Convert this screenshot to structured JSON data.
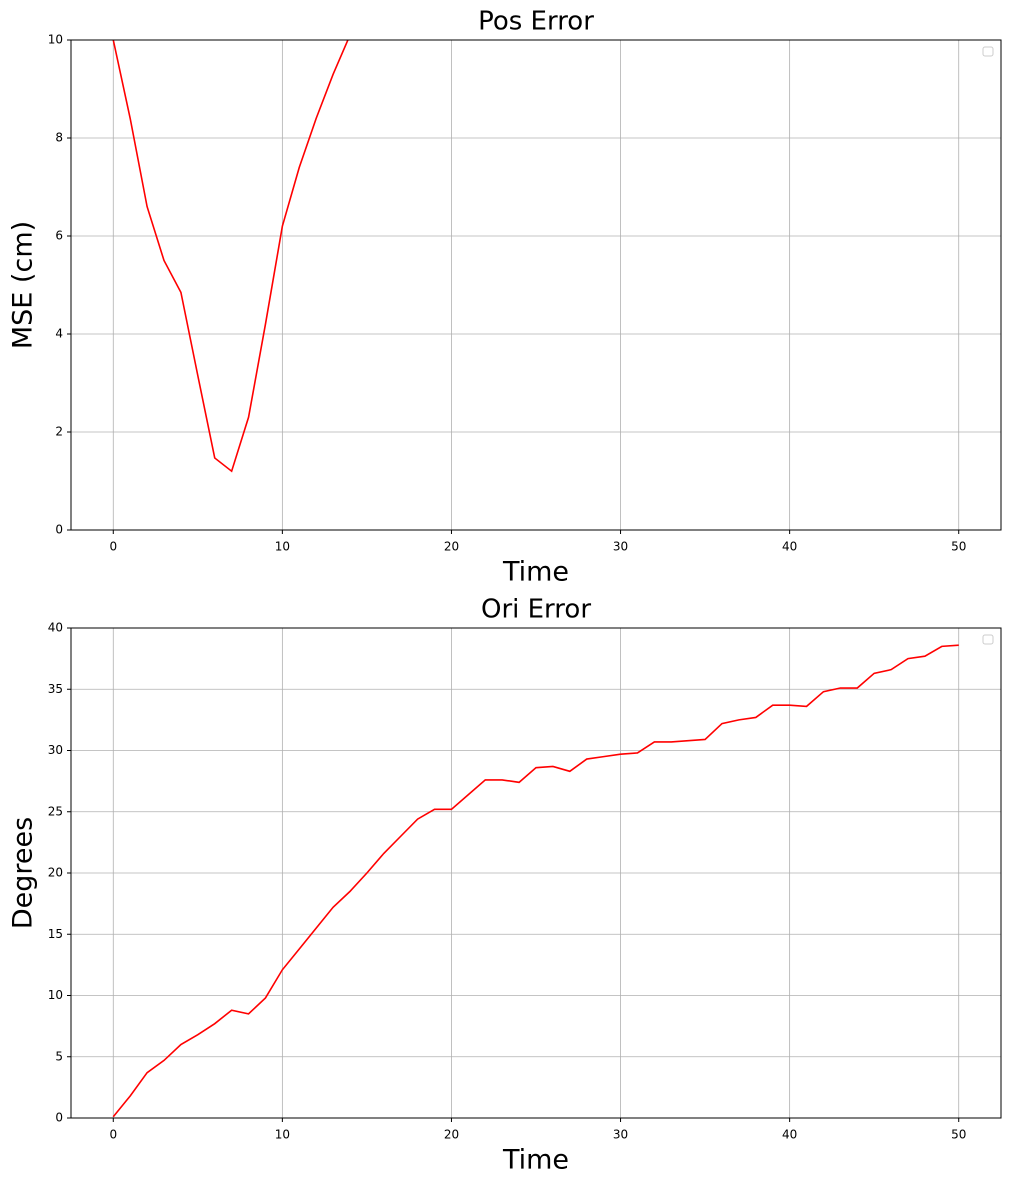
{
  "chart_data": [
    {
      "type": "line",
      "title": "Pos Error",
      "xlabel": "Time",
      "ylabel": "MSE (cm)",
      "x": [
        0,
        1,
        2,
        3,
        4,
        5,
        6,
        7,
        8,
        9,
        10,
        11,
        12,
        13,
        14
      ],
      "series": [
        {
          "color": "#ff0000",
          "values": [
            10,
            8.4,
            6.6,
            5.5,
            4.85,
            3.15,
            1.47,
            1.2,
            2.3,
            4.2,
            6.2,
            7.4,
            8.4,
            9.3,
            10.1
          ]
        }
      ],
      "xlim": [
        -2.5,
        52.5
      ],
      "xticks": [
        0,
        10,
        20,
        30,
        40,
        50
      ],
      "ylim": [
        0,
        10
      ],
      "yticks": [
        0,
        2,
        4,
        6,
        8,
        10
      ],
      "grid": true,
      "legend": "upper right"
    },
    {
      "type": "line",
      "title": "Ori Error",
      "xlabel": "Time",
      "ylabel": "Degrees",
      "x": [
        0,
        1,
        2,
        3,
        4,
        5,
        6,
        7,
        8,
        9,
        10,
        11,
        12,
        13,
        14,
        15,
        16,
        17,
        18,
        19,
        20,
        21,
        22,
        23,
        24,
        25,
        26,
        27,
        28,
        29,
        30,
        31,
        32,
        33,
        34,
        35,
        36,
        37,
        38,
        39,
        40,
        41,
        42,
        43,
        44,
        45,
        46,
        47,
        48,
        49,
        50
      ],
      "series": [
        {
          "color": "#ff0000",
          "values": [
            0.1,
            1.8,
            3.7,
            4.7,
            6.0,
            6.8,
            7.7,
            8.8,
            8.5,
            9.8,
            12.1,
            13.8,
            15.5,
            17.2,
            18.5,
            20.0,
            21.6,
            23.0,
            24.4,
            25.2,
            25.2,
            26.4,
            27.6,
            27.6,
            27.4,
            28.6,
            28.7,
            28.3,
            29.3,
            29.5,
            29.7,
            29.8,
            30.7,
            30.7,
            30.8,
            30.9,
            32.2,
            32.5,
            32.7,
            33.7,
            33.7,
            33.6,
            34.8,
            35.1,
            35.1,
            36.3,
            36.6,
            37.5,
            37.7,
            38.5,
            38.6
          ]
        }
      ],
      "xlim": [
        -2.5,
        52.5
      ],
      "xticks": [
        0,
        10,
        20,
        30,
        40,
        50
      ],
      "ylim": [
        0,
        40
      ],
      "yticks": [
        0,
        5,
        10,
        15,
        20,
        25,
        30,
        35,
        40
      ],
      "grid": true,
      "legend": "upper right"
    }
  ]
}
